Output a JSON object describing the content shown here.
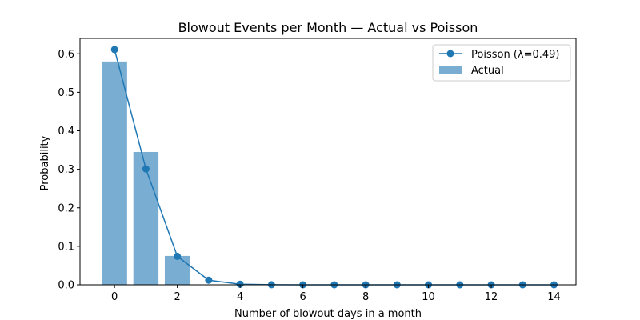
{
  "chart_data": {
    "type": "bar",
    "title": "Blowout Events per Month — Actual vs Poisson",
    "xlabel": "Number of blowout days in a month",
    "ylabel": "Probability",
    "xlim": [
      -1.1,
      14.7
    ],
    "ylim": [
      0,
      0.64
    ],
    "x_ticks": [
      0,
      2,
      4,
      6,
      8,
      10,
      12,
      14
    ],
    "y_ticks": [
      0.0,
      0.1,
      0.2,
      0.3,
      0.4,
      0.5,
      0.6
    ],
    "legend_position": "top-right",
    "grid": false,
    "series": [
      {
        "name": "Poisson (λ=0.49)",
        "type": "line",
        "marker": "circle",
        "color": "#1f77b4",
        "x": [
          0,
          1,
          2,
          3,
          4,
          5,
          6,
          7,
          8,
          9,
          10,
          11,
          12,
          13,
          14
        ],
        "values": [
          0.611,
          0.301,
          0.074,
          0.012,
          0.0015,
          0.0002,
          0,
          0,
          0,
          0,
          0,
          0,
          0,
          0,
          0
        ]
      },
      {
        "name": "Actual",
        "type": "bar",
        "color": "#1f77b4",
        "opacity": 0.6,
        "x": [
          0,
          1,
          2
        ],
        "values": [
          0.58,
          0.345,
          0.075
        ]
      }
    ]
  }
}
